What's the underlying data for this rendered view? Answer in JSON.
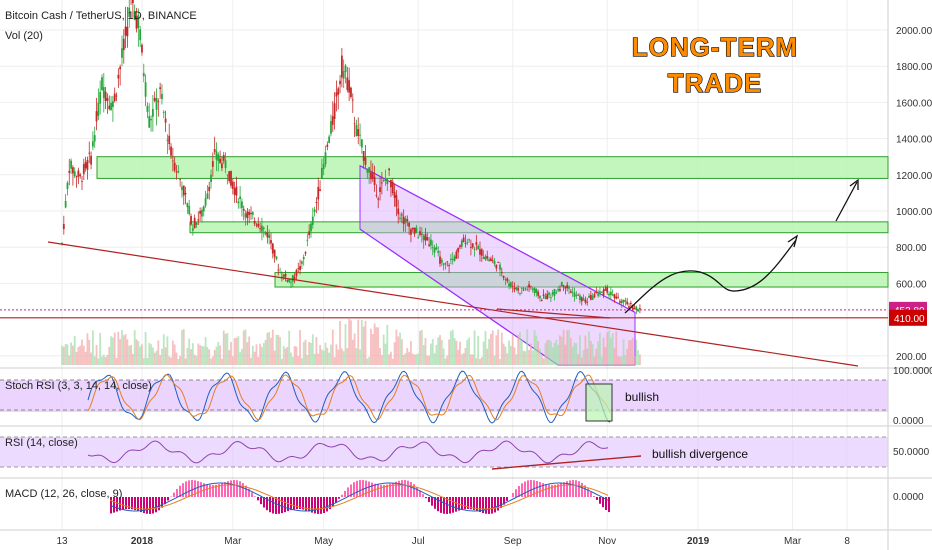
{
  "header": {
    "symbol_line": "Bitcoin Cash / TetherUS, 1D, BINANCE",
    "volume_label": "Vol (20)"
  },
  "headline": {
    "line1": "LONG-TERM",
    "line2": "TRADE"
  },
  "colors": {
    "zone_fill": "#b9f5b1",
    "zone_stroke": "#2e9e2e",
    "channel_fill": "#d9a8ff",
    "channel_stroke": "#9b30ff",
    "trend_line": "#b22222",
    "price_line": "#cc2288",
    "level_line": "#b22222",
    "candle_up": "#26a63a",
    "candle_down": "#c62828",
    "osc_band": "#e4c7ff",
    "stoch_k": "#1f5fbf",
    "stoch_d": "#e67e22",
    "rsi_line": "#8e44ad",
    "macd_line": "#1f5fbf",
    "signal_line": "#e67e22",
    "hist_pos": "#ff66b3",
    "hist_neg": "#cc0077",
    "headline": "#ff8c00",
    "price_badge": "#cc2288",
    "level_badge": "#cc0000"
  },
  "chart_data": {
    "type": "candlestick",
    "x_ticks": [
      "13",
      "2018",
      "Mar",
      "May",
      "Jul",
      "Sep",
      "Nov",
      "2019",
      "Mar",
      "8"
    ],
    "y_axis": {
      "min": 120,
      "max": 2200,
      "ticks": [
        "2000.00",
        "1800.00",
        "1600.00",
        "1400.00",
        "1200.00",
        "1000.00",
        "800.00",
        "600.00",
        "200.00"
      ]
    },
    "price_path": [
      [
        0,
        820
      ],
      [
        2,
        1250
      ],
      [
        5,
        1180
      ],
      [
        8,
        1300
      ],
      [
        11,
        1700
      ],
      [
        14,
        1580
      ],
      [
        17,
        1900
      ],
      [
        19,
        2150
      ],
      [
        21,
        2050
      ],
      [
        24,
        1500
      ],
      [
        27,
        1650
      ],
      [
        30,
        1320
      ],
      [
        33,
        1150
      ],
      [
        36,
        920
      ],
      [
        39,
        1000
      ],
      [
        42,
        1300
      ],
      [
        45,
        1260
      ],
      [
        48,
        1100
      ],
      [
        51,
        980
      ],
      [
        54,
        940
      ],
      [
        57,
        860
      ],
      [
        60,
        660
      ],
      [
        63,
        610
      ],
      [
        66,
        700
      ],
      [
        69,
        950
      ],
      [
        72,
        1250
      ],
      [
        75,
        1550
      ],
      [
        77,
        1800
      ],
      [
        79,
        1700
      ],
      [
        81,
        1450
      ],
      [
        84,
        1250
      ],
      [
        87,
        1100
      ],
      [
        90,
        1200
      ],
      [
        93,
        980
      ],
      [
        96,
        900
      ],
      [
        99,
        860
      ],
      [
        102,
        820
      ],
      [
        105,
        690
      ],
      [
        108,
        740
      ],
      [
        111,
        850
      ],
      [
        114,
        800
      ],
      [
        117,
        740
      ],
      [
        120,
        700
      ],
      [
        123,
        600
      ],
      [
        126,
        560
      ],
      [
        129,
        580
      ],
      [
        132,
        520
      ],
      [
        135,
        540
      ],
      [
        138,
        600
      ],
      [
        141,
        540
      ],
      [
        144,
        500
      ],
      [
        147,
        540
      ],
      [
        150,
        560
      ],
      [
        153,
        510
      ],
      [
        156,
        480
      ],
      [
        159,
        454
      ]
    ],
    "projection_path": [
      [
        160,
        454
      ],
      [
        166,
        560
      ],
      [
        173,
        650
      ],
      [
        180,
        600
      ],
      [
        186,
        570
      ],
      [
        194,
        640
      ],
      [
        202,
        860
      ],
      [
        208,
        930
      ],
      [
        215,
        1200
      ]
    ],
    "zones": [
      {
        "y0": 1180,
        "y1": 1300,
        "x0": 0,
        "x1": 234
      },
      {
        "y0": 880,
        "y1": 940,
        "x0": 36,
        "x1": 234
      },
      {
        "y0": 580,
        "y1": 660,
        "x0": 59,
        "x1": 234
      }
    ],
    "channel": {
      "upper": [
        [
          76,
          1250
        ],
        [
          160,
          440
        ]
      ],
      "lower": [
        [
          76,
          900
        ],
        [
          150,
          130
        ]
      ]
    },
    "trend_line": [
      [
        0,
        820
      ],
      [
        219,
        130
      ]
    ],
    "level_line": 410,
    "current_price": {
      "value": 453.8,
      "label": "453.80"
    },
    "level_badge": {
      "value": 410,
      "label": "410.00"
    },
    "annotations": {
      "stoch": "bullish",
      "rsi": "bullish divergence"
    },
    "panes": {
      "stoch": {
        "title": "Stoch RSI (3, 3, 14, 14, close)",
        "ticks": [
          "100.0000",
          "0.0000"
        ],
        "band": [
          20,
          80
        ]
      },
      "rsi": {
        "title": "RSI (14, close)",
        "ticks": [
          "50.0000"
        ],
        "band": [
          30,
          70
        ]
      },
      "macd": {
        "title": "MACD (12, 26, close, 9)",
        "ticks": [
          "0.0000"
        ]
      }
    }
  }
}
